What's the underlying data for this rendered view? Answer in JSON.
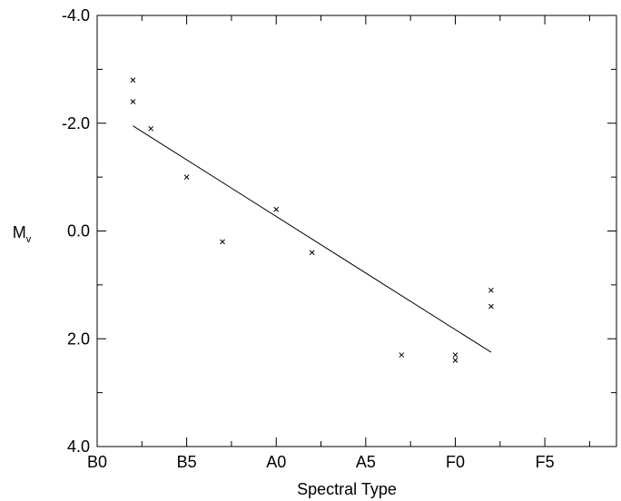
{
  "chart_data": {
    "type": "scatter",
    "xlabel": "Spectral Type",
    "ylabel": "M",
    "ylabel_sub": "v",
    "xlim": [
      0,
      29
    ],
    "x_ticks": [
      {
        "value": 0,
        "label": "B0"
      },
      {
        "value": 5,
        "label": "B5"
      },
      {
        "value": 10,
        "label": "A0"
      },
      {
        "value": 15,
        "label": "A5"
      },
      {
        "value": 20,
        "label": "F0"
      },
      {
        "value": 25,
        "label": "F5"
      }
    ],
    "ylim": [
      -4.0,
      4.0
    ],
    "y_inverted": true,
    "y_ticks": [
      {
        "value": -4.0,
        "label": "-4.0"
      },
      {
        "value": -2.0,
        "label": "-2.0"
      },
      {
        "value": 0.0,
        "label": "0.0"
      },
      {
        "value": 2.0,
        "label": "2.0"
      },
      {
        "value": 4.0,
        "label": "4.0"
      }
    ],
    "y_minor_ticks": [
      -3.0,
      -1.0,
      1.0,
      3.0
    ],
    "x_minor_ticks": [
      2.5,
      7.5,
      12.5,
      17.5,
      22.5,
      27.5
    ],
    "grid": false,
    "legend": "none",
    "points": [
      {
        "x": 2,
        "y": -2.8
      },
      {
        "x": 2,
        "y": -2.4
      },
      {
        "x": 3,
        "y": -1.9
      },
      {
        "x": 5,
        "y": -1.0
      },
      {
        "x": 7,
        "y": 0.2
      },
      {
        "x": 10,
        "y": -0.4
      },
      {
        "x": 12,
        "y": 0.4
      },
      {
        "x": 17,
        "y": 2.3
      },
      {
        "x": 20,
        "y": 2.3
      },
      {
        "x": 20,
        "y": 2.4
      },
      {
        "x": 22,
        "y": 1.1
      },
      {
        "x": 22,
        "y": 1.4
      }
    ],
    "fit_line": {
      "x": [
        2,
        22
      ],
      "y": [
        -1.95,
        2.25
      ]
    }
  }
}
